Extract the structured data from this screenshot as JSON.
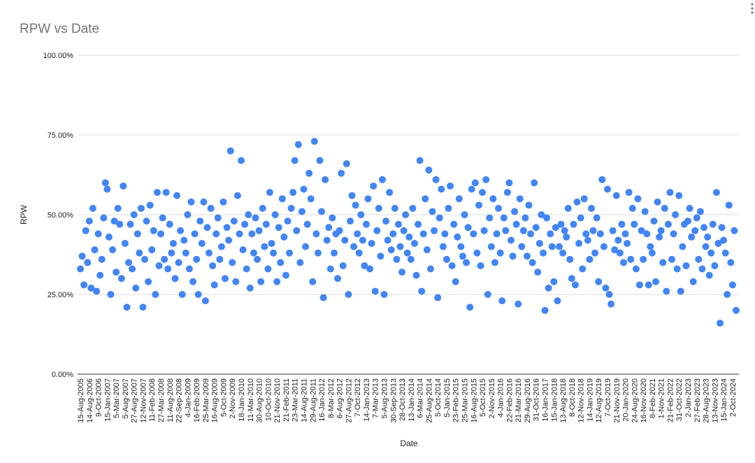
{
  "chart_data": {
    "type": "scatter",
    "title": "RPW vs Date",
    "x_label": "Date",
    "y_label": "RPW",
    "color": "#4285f4",
    "grid": true,
    "ylim": [
      0,
      100
    ],
    "yticks": [
      {
        "value": 0,
        "label": "0.00%"
      },
      {
        "value": 25,
        "label": "25.00%"
      },
      {
        "value": 50,
        "label": "50.00%"
      },
      {
        "value": 75,
        "label": "75.00%"
      },
      {
        "value": 100,
        "label": "100.00%"
      }
    ],
    "categories": [
      "15-Aug-2005",
      null,
      null,
      null,
      null,
      "14-Aug-2006",
      null,
      null,
      null,
      null,
      "9-Oct-2006",
      null,
      null,
      null,
      null,
      "15-Jan-2007",
      null,
      null,
      null,
      null,
      "5-Mar-2007",
      null,
      null,
      null,
      null,
      "5-Aug-2007",
      null,
      null,
      null,
      null,
      "27-Aug-2007",
      null,
      null,
      null,
      null,
      "12-Nov-2007",
      null,
      null,
      null,
      null,
      "11-Feb-2008",
      null,
      null,
      null,
      null,
      "27-Mar-2008",
      null,
      null,
      null,
      null,
      "11-Aug-2008",
      null,
      null,
      null,
      null,
      "22-Sep-2008",
      null,
      null,
      null,
      null,
      "4-Jan-2009",
      null,
      null,
      null,
      null,
      "16-Feb-2009",
      null,
      null,
      null,
      null,
      "25-Mar-2009",
      null,
      null,
      null,
      null,
      "16-Aug-2009",
      null,
      null,
      null,
      null,
      "5-Oct-2009",
      null,
      null,
      null,
      null,
      "2-Nov-2009",
      null,
      null,
      null,
      null,
      "18-Jan-2010",
      null,
      null,
      null,
      null,
      "11-Mar-2010",
      null,
      null,
      null,
      null,
      "30-Aug-2010",
      null,
      null,
      null,
      null,
      "10-Oct-2010",
      null,
      null,
      null,
      null,
      "21-Nov-2010",
      null,
      null,
      null,
      null,
      "21-Feb-2011",
      null,
      null,
      null,
      null,
      "23-Mar-2011",
      null,
      null,
      null,
      null,
      "14-Aug-2011",
      null,
      null,
      null,
      null,
      "29-Aug-2011",
      null,
      null,
      null,
      null,
      "16-Jan-2012",
      null,
      null,
      null,
      null,
      "8-Mar-2012",
      null,
      null,
      null,
      null,
      "6-Aug-2012",
      null,
      null,
      null,
      null,
      "27-Aug-2012",
      null,
      null,
      null,
      null,
      "7-Oct-2012",
      null,
      null,
      null,
      null,
      "14-Jan-2013",
      null,
      null,
      null,
      null,
      "7-Mar-2013",
      null,
      null,
      null,
      null,
      "5-Aug-2013",
      null,
      null,
      null,
      null,
      "30-Sep-2013",
      null,
      null,
      null,
      null,
      "28-Oct-2013",
      null,
      null,
      null,
      null,
      "13-Jan-2014",
      null,
      null,
      null,
      null,
      "6-Mar-2014",
      null,
      null,
      null,
      null,
      "25-Aug-2014",
      null,
      null,
      null,
      null,
      "5-Oct-2014",
      null,
      null,
      null,
      null,
      "5-Jan-2015",
      null,
      null,
      null,
      null,
      "23-Feb-2015",
      null,
      null,
      null,
      null,
      "25-Mar-2015",
      null,
      null,
      null,
      null,
      "16-Aug-2015",
      null,
      null,
      null,
      null,
      "5-Oct-2015",
      null,
      null,
      null,
      null,
      "2-Nov-2015",
      null,
      null,
      null,
      null,
      "4-Jan-2016",
      null,
      null,
      null,
      null,
      "22-Feb-2016",
      null,
      null,
      null,
      null,
      "21-Mar-2016",
      null,
      null,
      null,
      null,
      "29-Aug-2016",
      null,
      null,
      null,
      null,
      "31-Oct-2016",
      null,
      null,
      null,
      null,
      "16-Jan-2017",
      null,
      null,
      null,
      null,
      "15-Jan-2018",
      null,
      null,
      null,
      null,
      "13-Aug-2018",
      null,
      null,
      null,
      null,
      "8-Oct-2018",
      null,
      null,
      null,
      null,
      "12-Nov-2018",
      null,
      null,
      null,
      null,
      "14-Jan-2019",
      null,
      null,
      null,
      null,
      "12-Aug-2019",
      null,
      null,
      null,
      null,
      "7-Oct-2019",
      null,
      null,
      null,
      null,
      "21-Nov-2019",
      null,
      null,
      null,
      null,
      "20-Jan-2020",
      null,
      null,
      null,
      null,
      "24-Aug-2020",
      null,
      null,
      null,
      null,
      "16-Nov-2020",
      null,
      null,
      null,
      null,
      "8-Feb-2021",
      null,
      null,
      null,
      null,
      "1-Nov-2021",
      null,
      null,
      null,
      null,
      "21-Feb-2022",
      null,
      null,
      null,
      null,
      "31-Oct-2022",
      null,
      null,
      null,
      null,
      "2-Jan-2023",
      null,
      null,
      null,
      null,
      "27-Feb-2023",
      null,
      null,
      null,
      null,
      "28-Aug-2023",
      null,
      null,
      null,
      null,
      "13-Nov-2023",
      null,
      null,
      null,
      null,
      "15-Jan-2024",
      null,
      null,
      null,
      null,
      "2-Oct-2024",
      null,
      null
    ],
    "values": [
      33,
      37,
      28,
      45,
      35,
      48,
      27,
      52,
      39,
      26,
      44,
      31,
      36,
      49,
      60,
      58,
      43,
      25,
      39,
      48,
      32,
      52,
      47,
      30,
      59,
      41,
      21,
      35,
      47,
      33,
      50,
      27,
      44,
      38,
      52,
      21,
      36,
      48,
      29,
      53,
      39,
      45,
      25,
      57,
      34,
      44,
      49,
      36,
      57,
      33,
      47,
      38,
      41,
      30,
      56,
      35,
      45,
      25,
      42,
      38,
      50,
      33,
      54,
      29,
      44,
      36,
      25,
      48,
      41,
      54,
      23,
      46,
      38,
      52,
      34,
      28,
      44,
      49,
      36,
      40,
      54,
      30,
      46,
      42,
      70,
      35,
      48,
      29,
      56,
      44,
      67,
      39,
      47,
      33,
      50,
      27,
      44,
      38,
      49,
      36,
      45,
      29,
      52,
      40,
      47,
      33,
      57,
      41,
      38,
      50,
      29,
      46,
      35,
      55,
      43,
      31,
      48,
      38,
      52,
      57,
      67,
      45,
      72,
      35,
      51,
      58,
      40,
      47,
      63,
      55,
      29,
      73,
      44,
      38,
      67,
      51,
      24,
      61,
      42,
      46,
      33,
      49,
      38,
      44,
      30,
      45,
      63,
      34,
      42,
      66,
      25,
      48,
      56,
      40,
      53,
      44,
      38,
      50,
      42,
      34,
      47,
      55,
      33,
      41,
      59,
      26,
      45,
      52,
      37,
      61,
      25,
      48,
      42,
      57,
      39,
      44,
      52,
      36,
      47,
      40,
      32,
      45,
      50,
      38,
      43,
      36,
      52,
      41,
      31,
      47,
      67,
      26,
      44,
      55,
      39,
      64,
      33,
      51,
      45,
      61,
      24,
      49,
      58,
      40,
      44,
      36,
      52,
      59,
      34,
      47,
      29,
      43,
      55,
      40,
      37,
      50,
      35,
      46,
      21,
      58,
      44,
      60,
      38,
      53,
      34,
      57,
      45,
      61,
      25,
      49,
      40,
      55,
      35,
      44,
      52,
      38,
      23,
      49,
      45,
      57,
      60,
      42,
      37,
      51,
      47,
      22,
      55,
      40,
      45,
      49,
      37,
      53,
      44,
      35,
      60,
      46,
      32,
      41,
      50,
      38,
      20,
      49,
      27,
      44,
      40,
      29,
      46,
      23,
      40,
      47,
      38,
      45,
      43,
      52,
      36,
      30,
      47,
      28,
      54,
      41,
      49,
      33,
      55,
      44,
      42,
      36,
      52,
      45,
      38,
      49,
      29,
      44,
      61,
      40,
      27,
      58,
      25,
      22,
      45,
      39,
      56,
      42,
      38,
      47,
      35,
      44,
      41,
      57,
      36,
      52,
      47,
      33,
      55,
      28,
      45,
      36,
      51,
      44,
      28,
      40,
      38,
      48,
      29,
      54,
      43,
      45,
      35,
      52,
      26,
      47,
      57,
      36,
      44,
      50,
      33,
      56,
      26,
      40,
      47,
      34,
      48,
      52,
      43,
      29,
      45,
      49,
      36,
      51,
      33,
      46,
      40,
      43,
      31,
      38,
      47,
      34,
      57,
      41,
      16,
      46,
      42,
      38,
      25,
      53,
      35,
      28,
      45,
      20
    ]
  }
}
